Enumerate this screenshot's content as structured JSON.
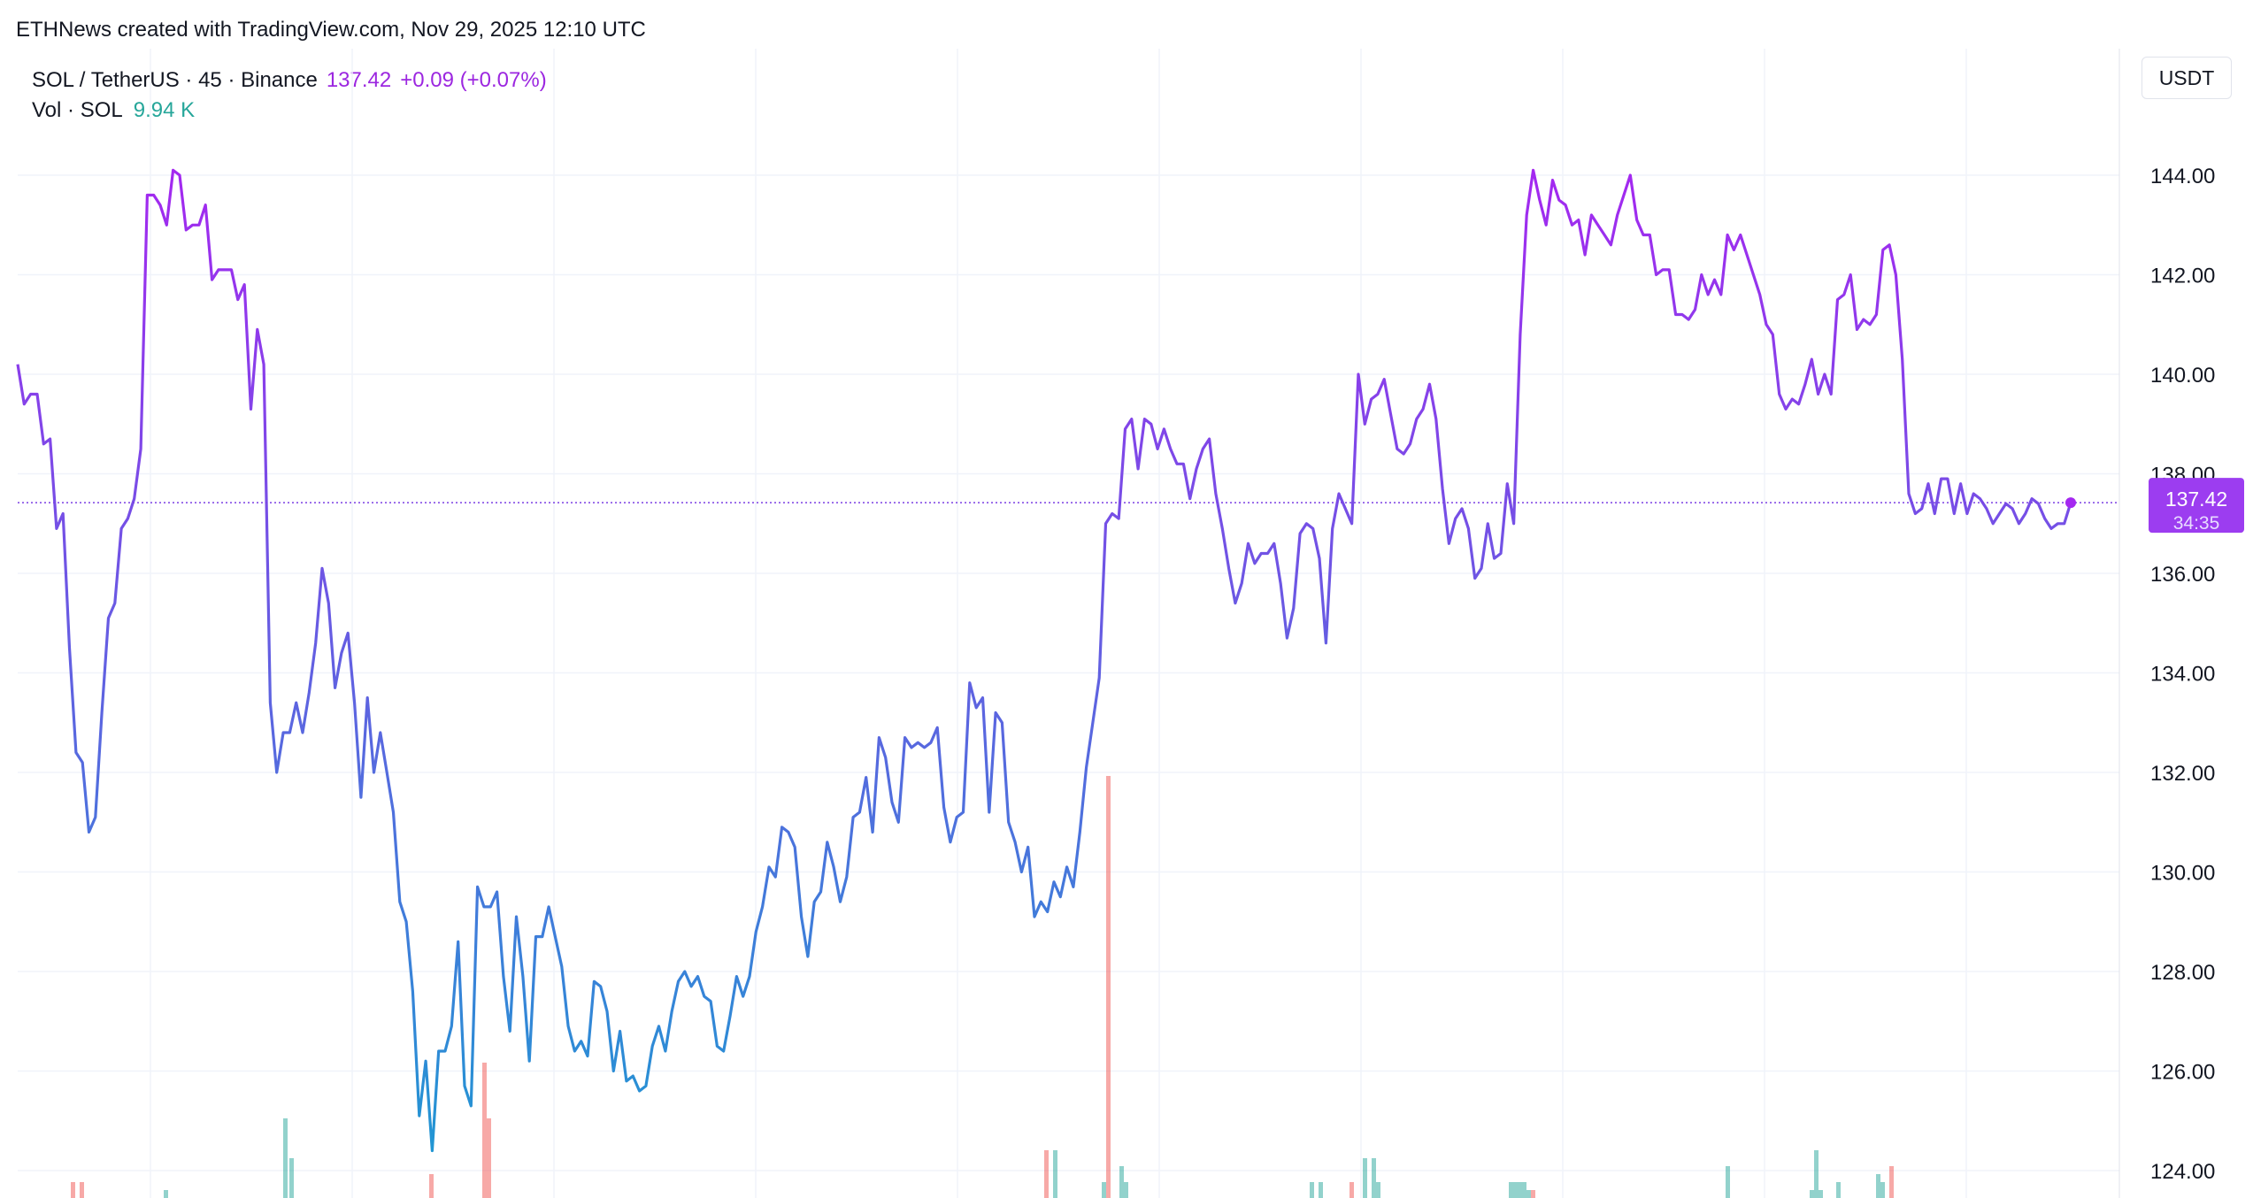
{
  "attribution": "ETHNews created with TradingView.com, Nov 29, 2025 12:10 UTC",
  "legend": {
    "symbol": "SOL / TetherUS · 45 · Binance",
    "price": "137.42",
    "change": "+0.09 (+0.07%)",
    "volume_label": "Vol · SOL",
    "volume_value": "9.94 K"
  },
  "currency_button": "USDT",
  "last_price_tag": {
    "price": "137.42",
    "countdown": "34:35"
  },
  "colors": {
    "line_start": "#2196d3",
    "line_end": "#a428f0",
    "up_volume": "#26a69a",
    "down_volume": "#ef5350",
    "price_tag": "#9c3df0"
  },
  "chart_data": {
    "type": "line",
    "y_axis_label": "USDT",
    "ylim": [
      123.5,
      145.5
    ],
    "y_ticks": [
      "124.00",
      "126.00",
      "128.00",
      "130.00",
      "132.00",
      "134.00",
      "136.00",
      "138.00",
      "140.00",
      "142.00",
      "144.00"
    ],
    "grid": true,
    "series": [
      {
        "values": [
          140.2,
          139.4,
          139.6,
          139.6,
          138.6,
          138.7,
          136.9,
          137.2,
          134.5,
          132.4,
          132.2,
          130.8,
          131.1,
          133.2,
          135.1,
          135.4,
          136.9,
          137.1,
          137.5,
          138.5,
          143.6,
          143.6,
          143.4,
          143.0,
          144.1,
          144.0,
          142.9,
          143.0,
          143.0,
          143.4,
          141.9,
          142.1,
          142.1,
          142.1,
          141.5,
          141.8,
          139.3,
          140.9,
          140.2,
          133.4,
          132.0,
          132.8,
          132.8,
          133.4,
          132.8,
          133.6,
          134.6,
          136.1,
          135.4,
          133.7,
          134.4,
          134.8,
          133.4,
          131.5,
          133.5,
          132.0,
          132.8,
          132.0,
          131.2,
          129.4,
          129.0,
          127.6,
          125.1,
          126.2,
          124.4,
          126.4,
          126.4,
          126.9,
          128.6,
          125.7,
          125.3,
          129.7,
          129.3,
          129.3,
          129.6,
          127.9,
          126.8,
          129.1,
          127.9,
          126.2,
          128.7,
          128.7,
          129.3,
          128.7,
          128.1,
          126.9,
          126.4,
          126.6,
          126.3,
          127.8,
          127.7,
          127.2,
          126.0,
          126.8,
          125.8,
          125.9,
          125.6,
          125.7,
          126.5,
          126.9,
          126.4,
          127.2,
          127.8,
          128.0,
          127.7,
          127.9,
          127.5,
          127.4,
          126.5,
          126.4,
          127.1,
          127.9,
          127.5,
          127.9,
          128.8,
          129.3,
          130.1,
          129.9,
          130.9,
          130.8,
          130.5,
          129.1,
          128.3,
          129.4,
          129.6,
          130.6,
          130.1,
          129.4,
          129.9,
          131.1,
          131.2,
          131.9,
          130.8,
          132.7,
          132.3,
          131.4,
          131.0,
          132.7,
          132.5,
          132.6,
          132.5,
          132.6,
          132.9,
          131.3,
          130.6,
          131.1,
          131.2,
          133.8,
          133.3,
          133.5,
          131.2,
          133.2,
          133.0,
          131.0,
          130.6,
          130.0,
          130.5,
          129.1,
          129.4,
          129.2,
          129.8,
          129.5,
          130.1,
          129.7,
          130.8,
          132.1,
          133.0,
          133.9,
          137.0,
          137.2,
          137.1,
          138.9,
          139.1,
          138.1,
          139.1,
          139.0,
          138.5,
          138.9,
          138.5,
          138.2,
          138.2,
          137.5,
          138.1,
          138.5,
          138.7,
          137.6,
          136.9,
          136.1,
          135.4,
          135.8,
          136.6,
          136.2,
          136.4,
          136.4,
          136.6,
          135.8,
          134.7,
          135.3,
          136.8,
          137.0,
          136.9,
          136.3,
          134.6,
          136.9,
          137.6,
          137.3,
          137.0,
          140.0,
          139.0,
          139.5,
          139.6,
          139.9,
          139.2,
          138.5,
          138.4,
          138.6,
          139.1,
          139.3,
          139.8,
          139.1,
          137.7,
          136.6,
          137.1,
          137.3,
          136.9,
          135.9,
          136.1,
          137.0,
          136.3,
          136.4,
          137.8,
          137.0,
          140.8,
          143.2,
          144.1,
          143.5,
          143.0,
          143.9,
          143.5,
          143.4,
          143.0,
          143.1,
          142.4,
          143.2,
          143.0,
          142.8,
          142.6,
          143.2,
          143.6,
          144.0,
          143.1,
          142.8,
          142.8,
          142.0,
          142.1,
          142.1,
          141.2,
          141.2,
          141.1,
          141.3,
          142.0,
          141.6,
          141.9,
          141.6,
          142.8,
          142.5,
          142.8,
          142.4,
          142.0,
          141.6,
          141.0,
          140.8,
          139.6,
          139.3,
          139.5,
          139.4,
          139.8,
          140.3,
          139.6,
          140.0,
          139.6,
          141.5,
          141.6,
          142.0,
          140.9,
          141.1,
          141.0,
          141.2,
          142.5,
          142.6,
          142.0,
          140.3,
          137.6,
          137.2,
          137.3,
          137.8,
          137.2,
          137.9,
          137.9,
          137.2,
          137.8,
          137.2,
          137.6,
          137.5,
          137.3,
          137.0,
          137.2,
          137.4,
          137.3,
          137.0,
          137.2,
          137.5,
          137.4,
          137.1,
          136.9,
          137.0,
          137.0,
          137.42
        ],
        "colors_by_gradient": true
      }
    ],
    "volume_bars": {
      "values_relative": [
        0.02,
        0.02,
        0,
        0.01,
        0,
        0,
        0,
        0,
        0,
        0,
        0.1,
        0.05,
        0,
        0,
        0,
        0,
        0,
        0,
        0.03,
        0,
        0,
        0.17,
        0.1,
        0.06,
        0.06,
        0.02,
        0.53,
        0.04,
        0.02,
        0.02,
        0.02,
        0.02,
        0.05,
        0.05,
        0.02,
        0.02,
        0.02,
        0.02,
        0.02,
        0.01,
        0.01,
        0.04,
        0.01,
        0.06,
        0.01,
        0.02,
        0.03,
        0.02,
        0.04
      ],
      "directions": [
        "down",
        "down",
        "down",
        "up",
        "down",
        "down",
        "down",
        "down",
        "down",
        "down",
        "up",
        "up",
        "down",
        "down",
        "down",
        "down",
        "down",
        "down",
        "down",
        "down",
        "down",
        "down",
        "down",
        "down",
        "up",
        "up",
        "down",
        "up",
        "up",
        "up",
        "up",
        "down",
        "up",
        "up",
        "up",
        "up",
        "up",
        "up",
        "up",
        "up",
        "down",
        "up",
        "up",
        "up",
        "up",
        "up",
        "up",
        "up",
        "down"
      ],
      "category_hint": "partially visible at bottom edge"
    }
  }
}
